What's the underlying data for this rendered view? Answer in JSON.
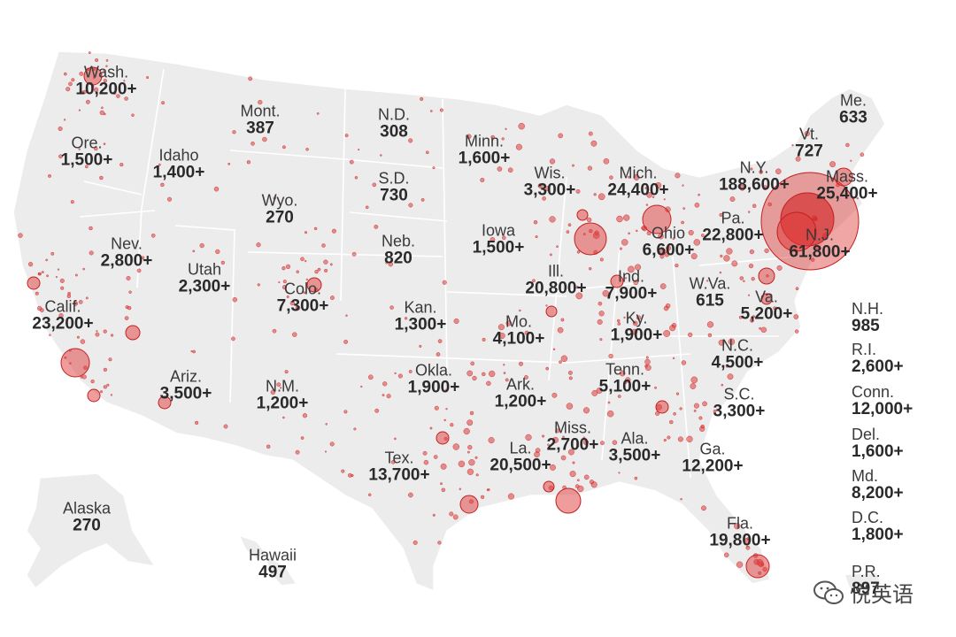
{
  "colors": {
    "land": "#ececec",
    "border": "#ffffff",
    "bubble_fill": "#e03a3a",
    "bubble_stroke": "#c41f1f",
    "hotspot": "#d11f1f"
  },
  "states": [
    {
      "id": "wash",
      "name": "Wash.",
      "count": "10,200+"
    },
    {
      "id": "ore",
      "name": "Ore.",
      "count": "1,500+"
    },
    {
      "id": "idaho",
      "name": "Idaho",
      "count": "1,400+"
    },
    {
      "id": "mont",
      "name": "Mont.",
      "count": "387"
    },
    {
      "id": "nd",
      "name": "N.D.",
      "count": "308"
    },
    {
      "id": "minn",
      "name": "Minn.",
      "count": "1,600+"
    },
    {
      "id": "wis",
      "name": "Wis.",
      "count": "3,300+"
    },
    {
      "id": "mich",
      "name": "Mich.",
      "count": "24,400+"
    },
    {
      "id": "ny",
      "name": "N.Y.",
      "count": "188,600+"
    },
    {
      "id": "vt",
      "name": "Vt.",
      "count": "727"
    },
    {
      "id": "me",
      "name": "Me.",
      "count": "633"
    },
    {
      "id": "mass",
      "name": "Mass.",
      "count": "25,400+"
    },
    {
      "id": "sd",
      "name": "S.D.",
      "count": "730"
    },
    {
      "id": "wyo",
      "name": "Wyo.",
      "count": "270"
    },
    {
      "id": "nev",
      "name": "Nev.",
      "count": "2,800+"
    },
    {
      "id": "utah",
      "name": "Utah",
      "count": "2,300+"
    },
    {
      "id": "colo",
      "name": "Colo.",
      "count": "7,300+"
    },
    {
      "id": "neb",
      "name": "Neb.",
      "count": "820"
    },
    {
      "id": "iowa",
      "name": "Iowa",
      "count": "1,500+"
    },
    {
      "id": "ill",
      "name": "Ill.",
      "count": "20,800+"
    },
    {
      "id": "ind",
      "name": "Ind.",
      "count": "7,900+"
    },
    {
      "id": "ohio",
      "name": "Ohio",
      "count": "6,600+"
    },
    {
      "id": "pa",
      "name": "Pa.",
      "count": "22,800+"
    },
    {
      "id": "nj",
      "name": "N.J.",
      "count": "61,800+"
    },
    {
      "id": "calif",
      "name": "Calif.",
      "count": "23,200+"
    },
    {
      "id": "kan",
      "name": "Kan.",
      "count": "1,300+"
    },
    {
      "id": "mo",
      "name": "Mo.",
      "count": "4,100+"
    },
    {
      "id": "wva",
      "name": "W.Va.",
      "count": "615"
    },
    {
      "id": "va",
      "name": "Va.",
      "count": "5,200+"
    },
    {
      "id": "ky",
      "name": "Ky.",
      "count": "1,900+"
    },
    {
      "id": "ariz",
      "name": "Ariz.",
      "count": "3,500+"
    },
    {
      "id": "nm",
      "name": "N.M.",
      "count": "1,200+"
    },
    {
      "id": "okla",
      "name": "Okla.",
      "count": "1,900+"
    },
    {
      "id": "ark",
      "name": "Ark.",
      "count": "1,200+"
    },
    {
      "id": "tenn",
      "name": "Tenn.",
      "count": "5,100+"
    },
    {
      "id": "nc",
      "name": "N.C.",
      "count": "4,500+"
    },
    {
      "id": "sc",
      "name": "S.C.",
      "count": "3,300+"
    },
    {
      "id": "miss",
      "name": "Miss.",
      "count": "2,700+"
    },
    {
      "id": "ala",
      "name": "Ala.",
      "count": "3,500+"
    },
    {
      "id": "ga",
      "name": "Ga.",
      "count": "12,200+"
    },
    {
      "id": "tex",
      "name": "Tex.",
      "count": "13,700+"
    },
    {
      "id": "la",
      "name": "La.",
      "count": "20,500+"
    },
    {
      "id": "fla",
      "name": "Fla.",
      "count": "19,800+"
    },
    {
      "id": "alaska",
      "name": "Alaska",
      "count": "270"
    },
    {
      "id": "hawaii",
      "name": "Hawaii",
      "count": "497"
    }
  ],
  "sidebar": [
    {
      "id": "nh",
      "name": "N.H.",
      "count": "985"
    },
    {
      "id": "ri",
      "name": "R.I.",
      "count": "2,600+"
    },
    {
      "id": "conn",
      "name": "Conn.",
      "count": "12,000+"
    },
    {
      "id": "del",
      "name": "Del.",
      "count": "1,600+"
    },
    {
      "id": "md",
      "name": "Md.",
      "count": "8,200+"
    },
    {
      "id": "dc",
      "name": "D.C.",
      "count": "1,800+"
    },
    {
      "id": "pr",
      "name": "P.R.",
      "count": "897"
    }
  ],
  "watermark": {
    "text": "悦英语",
    "icon": "wechat-icon"
  }
}
